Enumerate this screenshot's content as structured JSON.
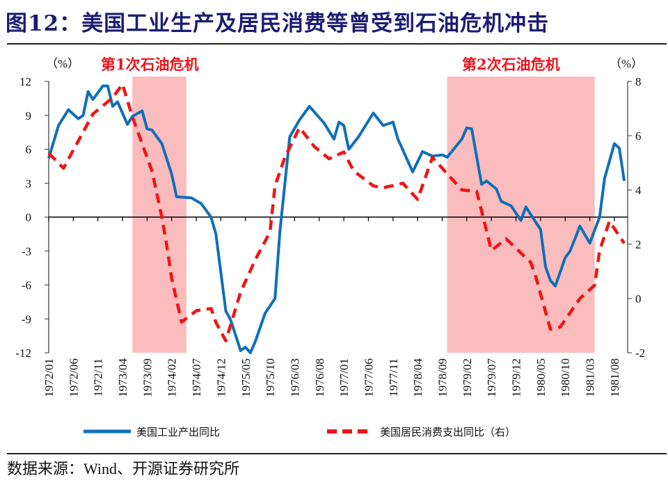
{
  "header": {
    "title": "图12：美国工业生产及居民消费等曾受到石油危机冲击"
  },
  "footer": {
    "source": "数据来源：Wind、开源证券研究所"
  },
  "chart_data": {
    "type": "line",
    "title": "图12：美国工业生产及居民消费等曾受到石油危机冲击",
    "left_axis": {
      "unit_label": "（%）",
      "range": [
        -12,
        12
      ],
      "ticks": [
        12,
        9,
        6,
        3,
        0,
        -3,
        -6,
        -9,
        -12
      ]
    },
    "right_axis": {
      "unit_label": "（%）",
      "range": [
        -2,
        8
      ],
      "ticks": [
        8,
        6,
        4,
        2,
        0,
        -2
      ]
    },
    "x_range": [
      "1972/01",
      "1981/10"
    ],
    "x_tick_labels": [
      "1972/01",
      "1972/06",
      "1972/11",
      "1973/04",
      "1973/09",
      "1974/02",
      "1974/07",
      "1974/12",
      "1975/05",
      "1975/10",
      "1976/03",
      "1976/08",
      "1977/01",
      "1977/06",
      "1977/11",
      "1978/04",
      "1978/09",
      "1979/02",
      "1979/07",
      "1979/12",
      "1980/05",
      "1980/10",
      "1981/03",
      "1981/08"
    ],
    "grid": false,
    "legend_position": "bottom",
    "annotations": [
      {
        "text": "第1次石油危机",
        "start": "1973/06",
        "end": "1974/04"
      },
      {
        "text": "第2次石油危机",
        "start": "1978/10",
        "end": "1981/03"
      }
    ],
    "shade_color": "#fbbcbe",
    "series": [
      {
        "name": "美国工业产出同比",
        "axis": "left",
        "style": "solid",
        "color": "#0f6fba",
        "points": [
          [
            "1972/01",
            5.2
          ],
          [
            "1972/03",
            8.1
          ],
          [
            "1972/05",
            9.5
          ],
          [
            "1972/07",
            8.7
          ],
          [
            "1972/08",
            9.0
          ],
          [
            "1972/09",
            11.1
          ],
          [
            "1972/10",
            10.4
          ],
          [
            "1972/12",
            11.6
          ],
          [
            "1973/01",
            11.6
          ],
          [
            "1973/02",
            9.8
          ],
          [
            "1973/03",
            10.2
          ],
          [
            "1973/05",
            8.2
          ],
          [
            "1973/06",
            8.9
          ],
          [
            "1973/08",
            9.4
          ],
          [
            "1973/09",
            7.8
          ],
          [
            "1973/10",
            7.7
          ],
          [
            "1973/12",
            6.5
          ],
          [
            "1974/02",
            3.8
          ],
          [
            "1974/03",
            1.8
          ],
          [
            "1974/06",
            1.7
          ],
          [
            "1974/08",
            1.2
          ],
          [
            "1974/10",
            0.0
          ],
          [
            "1974/11",
            -1.5
          ],
          [
            "1975/01",
            -8.3
          ],
          [
            "1975/02",
            -9.1
          ],
          [
            "1975/04",
            -11.8
          ],
          [
            "1975/05",
            -11.5
          ],
          [
            "1975/06",
            -12.0
          ],
          [
            "1975/07",
            -11.0
          ],
          [
            "1975/09",
            -8.5
          ],
          [
            "1975/11",
            -7.2
          ],
          [
            "1975/12",
            -1.3
          ],
          [
            "1976/02",
            7.1
          ],
          [
            "1976/04",
            8.6
          ],
          [
            "1976/06",
            9.8
          ],
          [
            "1976/09",
            8.3
          ],
          [
            "1976/11",
            6.9
          ],
          [
            "1976/12",
            8.4
          ],
          [
            "1977/01",
            8.1
          ],
          [
            "1977/02",
            6.0
          ],
          [
            "1977/04",
            7.1
          ],
          [
            "1977/07",
            9.2
          ],
          [
            "1977/09",
            8.1
          ],
          [
            "1977/11",
            8.4
          ],
          [
            "1977/12",
            6.9
          ],
          [
            "1978/03",
            4.0
          ],
          [
            "1978/05",
            5.8
          ],
          [
            "1978/07",
            5.4
          ],
          [
            "1978/09",
            5.5
          ],
          [
            "1978/10",
            5.3
          ],
          [
            "1979/01",
            6.9
          ],
          [
            "1979/02",
            7.9
          ],
          [
            "1979/03",
            7.8
          ],
          [
            "1979/05",
            2.9
          ],
          [
            "1979/06",
            3.2
          ],
          [
            "1979/08",
            2.5
          ],
          [
            "1979/09",
            1.4
          ],
          [
            "1979/11",
            1.0
          ],
          [
            "1980/01",
            -0.3
          ],
          [
            "1980/02",
            0.9
          ],
          [
            "1980/05",
            -1.1
          ],
          [
            "1980/06",
            -4.4
          ],
          [
            "1980/07",
            -5.6
          ],
          [
            "1980/08",
            -6.1
          ],
          [
            "1980/10",
            -3.6
          ],
          [
            "1980/11",
            -3.0
          ],
          [
            "1981/01",
            -0.8
          ],
          [
            "1981/03",
            -2.3
          ],
          [
            "1981/05",
            0.0
          ],
          [
            "1981/06",
            3.4
          ],
          [
            "1981/08",
            6.5
          ],
          [
            "1981/09",
            6.1
          ],
          [
            "1981/10",
            3.2
          ]
        ]
      },
      {
        "name": "美国居民消费支出同比（右）",
        "axis": "right",
        "style": "dashed",
        "color": "#f01414",
        "points": [
          [
            "1972/01",
            5.36
          ],
          [
            "1972/04",
            4.8
          ],
          [
            "1972/07",
            5.8
          ],
          [
            "1972/10",
            6.8
          ],
          [
            "1973/02",
            7.4
          ],
          [
            "1973/04",
            7.9
          ],
          [
            "1973/06",
            6.7
          ],
          [
            "1973/08",
            5.7
          ],
          [
            "1973/10",
            4.7
          ],
          [
            "1973/12",
            3.0
          ],
          [
            "1974/01",
            1.95
          ],
          [
            "1974/02",
            0.74
          ],
          [
            "1974/04",
            -0.87
          ],
          [
            "1974/07",
            -0.45
          ],
          [
            "1974/10",
            -0.37
          ],
          [
            "1974/11",
            -0.88
          ],
          [
            "1975/01",
            -1.56
          ],
          [
            "1975/04",
            0.23
          ],
          [
            "1975/07",
            1.43
          ],
          [
            "1975/10",
            2.46
          ],
          [
            "1975/11",
            4.15
          ],
          [
            "1976/01",
            5.2
          ],
          [
            "1976/04",
            6.3
          ],
          [
            "1976/07",
            5.6
          ],
          [
            "1976/10",
            5.15
          ],
          [
            "1977/01",
            5.4
          ],
          [
            "1977/03",
            4.7
          ],
          [
            "1977/07",
            4.15
          ],
          [
            "1977/09",
            4.08
          ],
          [
            "1978/01",
            4.25
          ],
          [
            "1978/04",
            3.65
          ],
          [
            "1978/07",
            5.2
          ],
          [
            "1978/10",
            4.6
          ],
          [
            "1979/01",
            4.0
          ],
          [
            "1979/04",
            3.95
          ],
          [
            "1979/07",
            1.77
          ],
          [
            "1979/10",
            2.2
          ],
          [
            "1980/03",
            1.33
          ],
          [
            "1980/04",
            0.82
          ],
          [
            "1980/07",
            -1.13
          ],
          [
            "1980/09",
            -1.05
          ],
          [
            "1981/01",
            0.0
          ],
          [
            "1981/04",
            0.49
          ],
          [
            "1981/05",
            1.77
          ],
          [
            "1981/07",
            2.85
          ],
          [
            "1981/10",
            2.03
          ]
        ]
      }
    ]
  }
}
